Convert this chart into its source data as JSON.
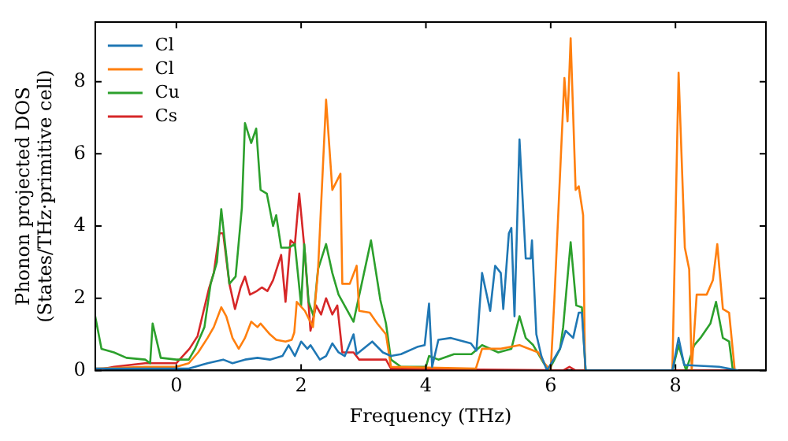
{
  "chart_data": {
    "type": "line",
    "xlabel": "Frequency (THz)",
    "ylabel": "Phonon projected DOS\n(States/THz·primitive cell)",
    "xlim": [
      -1.3,
      9.45
    ],
    "ylim": [
      0,
      9.65
    ],
    "xticks": [
      0,
      2,
      4,
      6,
      8
    ],
    "yticks": [
      0,
      2,
      4,
      6,
      8
    ],
    "grid": false,
    "legend": "top left",
    "marker": "none",
    "line_style": "solid",
    "series": [
      {
        "name": "Cl",
        "color": "#1f77b4",
        "x": [
          -1.3,
          0.2,
          0.3,
          0.5,
          0.75,
          0.9,
          1.1,
          1.3,
          1.5,
          1.7,
          1.8,
          1.9,
          2.0,
          2.1,
          2.15,
          2.3,
          2.4,
          2.5,
          2.6,
          2.7,
          2.84,
          2.89,
          3.14,
          3.31,
          3.44,
          3.6,
          3.86,
          3.98,
          4.05,
          4.1,
          4.2,
          4.4,
          4.72,
          4.81,
          4.9,
          5.03,
          5.11,
          5.2,
          5.24,
          5.33,
          5.37,
          5.42,
          5.5,
          5.6,
          5.68,
          5.7,
          5.77,
          5.85,
          5.94,
          6.15,
          6.24,
          6.36,
          6.45,
          6.5,
          6.56,
          7.95,
          8.05,
          8.14,
          8.7,
          9.0
        ],
        "values": [
          0.05,
          0.05,
          0.1,
          0.2,
          0.3,
          0.2,
          0.3,
          0.35,
          0.3,
          0.4,
          0.7,
          0.4,
          0.8,
          0.6,
          0.7,
          0.3,
          0.4,
          0.75,
          0.5,
          0.4,
          1.0,
          0.45,
          0.8,
          0.5,
          0.4,
          0.45,
          0.65,
          0.7,
          1.85,
          0.1,
          0.85,
          0.9,
          0.75,
          0.55,
          2.7,
          1.65,
          2.9,
          2.7,
          1.7,
          3.8,
          3.95,
          1.5,
          6.4,
          3.1,
          3.1,
          3.6,
          1.0,
          0.4,
          0.0,
          0.6,
          1.1,
          0.9,
          1.6,
          1.6,
          0.0,
          0.0,
          0.9,
          0.15,
          0.1,
          0.0
        ]
      },
      {
        "name": "Cl",
        "color": "#ff7f0e",
        "x": [
          -1.3,
          -0.5,
          0.0,
          0.2,
          0.35,
          0.5,
          0.6,
          0.72,
          0.8,
          0.9,
          1.0,
          1.1,
          1.2,
          1.3,
          1.35,
          1.5,
          1.6,
          1.75,
          1.85,
          1.89,
          1.93,
          2.06,
          2.19,
          2.27,
          2.4,
          2.5,
          2.63,
          2.66,
          2.78,
          2.89,
          2.93,
          3.1,
          3.22,
          3.36,
          3.44,
          4.8,
          4.9,
          5.2,
          5.5,
          5.8,
          5.9,
          6.0,
          6.06,
          6.22,
          6.27,
          6.32,
          6.4,
          6.45,
          6.52,
          6.55,
          7.95,
          8.05,
          8.15,
          8.22,
          8.26,
          8.34,
          8.5,
          8.6,
          8.67,
          8.76,
          8.86,
          8.95
        ],
        "values": [
          0.05,
          0.1,
          0.1,
          0.2,
          0.5,
          0.9,
          1.2,
          1.75,
          1.5,
          0.9,
          0.6,
          0.9,
          1.35,
          1.2,
          1.3,
          1.0,
          0.85,
          0.8,
          0.85,
          1.05,
          1.9,
          1.65,
          1.2,
          2.75,
          7.5,
          5.0,
          5.45,
          2.4,
          2.4,
          2.9,
          1.65,
          1.6,
          1.3,
          1.0,
          0.1,
          0.05,
          0.6,
          0.6,
          0.7,
          0.5,
          0.2,
          0.0,
          2.0,
          8.1,
          6.9,
          9.2,
          5.0,
          5.1,
          4.3,
          0.0,
          0.0,
          8.25,
          3.4,
          2.8,
          0.0,
          2.1,
          2.1,
          2.5,
          3.5,
          1.7,
          1.6,
          0.0
        ]
      },
      {
        "name": "Cu",
        "color": "#2ca02c",
        "x": [
          -1.3,
          -1.2,
          -1.0,
          -0.8,
          -0.5,
          -0.42,
          -0.38,
          -0.25,
          0.0,
          0.2,
          0.3,
          0.45,
          0.55,
          0.65,
          0.72,
          0.85,
          0.95,
          1.05,
          1.1,
          1.2,
          1.28,
          1.35,
          1.45,
          1.55,
          1.6,
          1.68,
          1.8,
          1.9,
          2.0,
          2.05,
          2.12,
          2.2,
          2.27,
          2.4,
          2.5,
          2.6,
          2.84,
          3.12,
          3.27,
          3.36,
          3.44,
          3.6,
          4.0,
          4.05,
          4.2,
          4.45,
          4.73,
          4.9,
          5.16,
          5.37,
          5.5,
          5.6,
          5.72,
          5.89,
          5.97,
          6.15,
          6.2,
          6.32,
          6.41,
          6.5,
          6.56,
          7.95,
          8.05,
          8.17,
          8.3,
          8.4,
          8.56,
          8.65,
          8.76,
          8.86,
          8.92
        ],
        "values": [
          1.5,
          0.6,
          0.5,
          0.35,
          0.3,
          0.2,
          1.3,
          0.35,
          0.3,
          0.3,
          0.6,
          1.2,
          2.4,
          3.0,
          4.47,
          2.4,
          2.6,
          4.5,
          6.85,
          6.3,
          6.7,
          5.0,
          4.9,
          4.0,
          4.3,
          3.4,
          3.4,
          3.5,
          1.8,
          3.5,
          1.9,
          1.5,
          2.8,
          3.5,
          2.7,
          2.1,
          1.35,
          3.6,
          1.95,
          1.3,
          0.3,
          0.1,
          0.1,
          0.4,
          0.3,
          0.45,
          0.45,
          0.7,
          0.5,
          0.6,
          1.5,
          0.9,
          0.7,
          0.2,
          0.0,
          0.6,
          1.2,
          3.55,
          1.8,
          1.75,
          0.0,
          0.0,
          0.7,
          0.0,
          0.7,
          0.9,
          1.3,
          1.9,
          0.9,
          0.8,
          0.0
        ]
      },
      {
        "name": "Cs",
        "color": "#d62728",
        "x": [
          -1.3,
          -1.0,
          -0.5,
          0.0,
          0.21,
          0.34,
          0.52,
          0.6,
          0.69,
          0.75,
          0.85,
          0.94,
          1.03,
          1.1,
          1.18,
          1.29,
          1.37,
          1.46,
          1.55,
          1.68,
          1.75,
          1.83,
          1.9,
          1.97,
          2.06,
          2.15,
          2.24,
          2.32,
          2.4,
          2.5,
          2.58,
          2.66,
          2.84,
          2.93,
          3.36,
          3.44,
          6.2,
          6.3,
          6.4,
          9.0
        ],
        "values": [
          0.0,
          0.1,
          0.2,
          0.2,
          0.6,
          0.95,
          2.25,
          2.7,
          3.8,
          3.8,
          2.4,
          1.7,
          2.3,
          2.6,
          2.1,
          2.2,
          2.3,
          2.2,
          2.5,
          3.2,
          1.9,
          3.6,
          3.5,
          4.9,
          3.25,
          1.1,
          1.8,
          1.55,
          2.0,
          1.55,
          1.8,
          0.5,
          0.5,
          0.3,
          0.3,
          0.05,
          0.0,
          0.1,
          0.0,
          0.0
        ]
      }
    ]
  }
}
